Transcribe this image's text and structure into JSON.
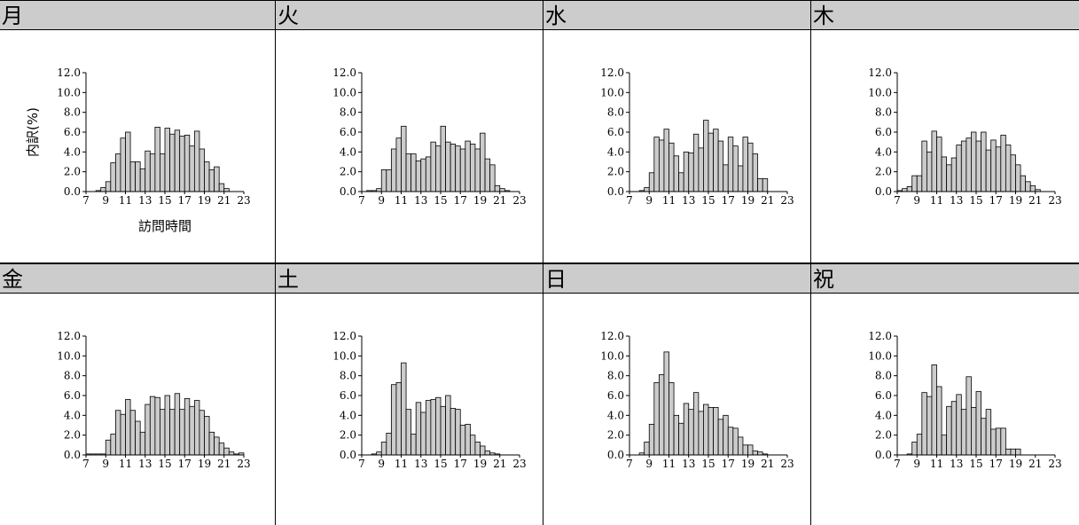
{
  "chart_data": [
    {
      "type": "bar",
      "title": "月",
      "ylabel": "内訳(%)",
      "xlabel": "訪問時間",
      "ylim": [
        0,
        12
      ],
      "yticks": [
        "0.0",
        "2.0",
        "4.0",
        "6.0",
        "8.0",
        "10.0",
        "12.0"
      ],
      "xticks": [
        "7",
        "9",
        "11",
        "13",
        "15",
        "17",
        "19",
        "21",
        "23"
      ],
      "x": [
        7,
        7.5,
        8,
        8.5,
        9,
        9.5,
        10,
        10.5,
        11,
        11.5,
        12,
        12.5,
        13,
        13.5,
        14,
        14.5,
        15,
        15.5,
        16,
        16.5,
        17,
        17.5,
        18,
        18.5,
        19,
        19.5,
        20,
        20.5,
        21,
        21.5,
        22,
        22.5
      ],
      "values": [
        0,
        0,
        0.1,
        0.4,
        1.0,
        2.9,
        3.8,
        5.4,
        6.0,
        3.0,
        3.0,
        2.3,
        4.1,
        3.8,
        6.5,
        3.8,
        6.4,
        5.8,
        6.2,
        5.6,
        5.7,
        4.6,
        6.1,
        4.3,
        3.0,
        2.2,
        2.5,
        0.8,
        0.3,
        0,
        0,
        0
      ]
    },
    {
      "type": "bar",
      "title": "火",
      "ylim": [
        0,
        12
      ],
      "yticks": [
        "0.0",
        "2.0",
        "4.0",
        "6.0",
        "8.0",
        "10.0",
        "12.0"
      ],
      "xticks": [
        "7",
        "9",
        "11",
        "13",
        "15",
        "17",
        "19",
        "21",
        "23"
      ],
      "x": [
        7,
        7.5,
        8,
        8.5,
        9,
        9.5,
        10,
        10.5,
        11,
        11.5,
        12,
        12.5,
        13,
        13.5,
        14,
        14.5,
        15,
        15.5,
        16,
        16.5,
        17,
        17.5,
        18,
        18.5,
        19,
        19.5,
        20,
        20.5,
        21,
        21.5,
        22,
        22.5
      ],
      "values": [
        0,
        0.1,
        0.1,
        0.3,
        2.2,
        2.2,
        4.3,
        5.4,
        6.6,
        3.8,
        3.8,
        3.1,
        3.3,
        3.5,
        5.0,
        4.6,
        6.6,
        5.0,
        4.8,
        4.6,
        4.3,
        5.1,
        4.8,
        4.3,
        5.9,
        3.3,
        2.7,
        0.6,
        0.3,
        0.1,
        0,
        0
      ]
    },
    {
      "type": "bar",
      "title": "水",
      "ylim": [
        0,
        12
      ],
      "yticks": [
        "0.0",
        "2.0",
        "4.0",
        "6.0",
        "8.0",
        "10.0",
        "12.0"
      ],
      "xticks": [
        "7",
        "9",
        "11",
        "13",
        "15",
        "17",
        "19",
        "21",
        "23"
      ],
      "x": [
        7,
        7.5,
        8,
        8.5,
        9,
        9.5,
        10,
        10.5,
        11,
        11.5,
        12,
        12.5,
        13,
        13.5,
        14,
        14.5,
        15,
        15.5,
        16,
        16.5,
        17,
        17.5,
        18,
        18.5,
        19,
        19.5,
        20,
        20.5,
        21,
        21.5,
        22,
        22.5
      ],
      "values": [
        0,
        0,
        0.1,
        0.4,
        1.9,
        5.5,
        5.2,
        6.3,
        4.9,
        3.6,
        1.9,
        4.0,
        3.9,
        5.8,
        4.4,
        7.2,
        5.9,
        6.3,
        5.1,
        2.7,
        5.5,
        4.6,
        2.6,
        5.5,
        4.9,
        3.8,
        1.3,
        1.3,
        0,
        0,
        0,
        0
      ]
    },
    {
      "type": "bar",
      "title": "木",
      "ylim": [
        0,
        12
      ],
      "yticks": [
        "0.0",
        "2.0",
        "4.0",
        "6.0",
        "8.0",
        "10.0",
        "12.0"
      ],
      "xticks": [
        "7",
        "9",
        "11",
        "13",
        "15",
        "17",
        "19",
        "21",
        "23"
      ],
      "x": [
        7,
        7.5,
        8,
        8.5,
        9,
        9.5,
        10,
        10.5,
        11,
        11.5,
        12,
        12.5,
        13,
        13.5,
        14,
        14.5,
        15,
        15.5,
        16,
        16.5,
        17,
        17.5,
        18,
        18.5,
        19,
        19.5,
        20,
        20.5,
        21,
        21.5,
        22,
        22.5
      ],
      "values": [
        0.1,
        0.3,
        0.5,
        1.6,
        1.6,
        5.1,
        4.0,
        6.1,
        5.5,
        3.5,
        2.7,
        3.4,
        4.7,
        5.1,
        5.4,
        6.0,
        5.1,
        6.0,
        4.2,
        5.2,
        4.5,
        5.7,
        4.7,
        3.7,
        2.7,
        1.6,
        1.0,
        0.6,
        0.2,
        0,
        0,
        0
      ]
    },
    {
      "type": "bar",
      "title": "金",
      "ylim": [
        0,
        12
      ],
      "yticks": [
        "0.0",
        "2.0",
        "4.0",
        "6.0",
        "8.0",
        "10.0",
        "12.0"
      ],
      "xticks": [
        "7",
        "9",
        "11",
        "13",
        "15",
        "17",
        "19",
        "21",
        "23"
      ],
      "x": [
        7,
        7.5,
        8,
        8.5,
        9,
        9.5,
        10,
        10.5,
        11,
        11.5,
        12,
        12.5,
        13,
        13.5,
        14,
        14.5,
        15,
        15.5,
        16,
        16.5,
        17,
        17.5,
        18,
        18.5,
        19,
        19.5,
        20,
        20.5,
        21,
        21.5,
        22,
        22.5
      ],
      "values": [
        0.1,
        0.1,
        0.1,
        0.1,
        1.5,
        2.1,
        4.5,
        4.1,
        5.6,
        4.5,
        3.4,
        2.3,
        5.1,
        5.9,
        5.8,
        4.6,
        6.0,
        4.6,
        6.2,
        4.6,
        5.7,
        4.9,
        5.5,
        4.5,
        3.9,
        2.3,
        1.8,
        1.2,
        0.7,
        0.3,
        0.1,
        0.2
      ]
    },
    {
      "type": "bar",
      "title": "土",
      "ylim": [
        0,
        12
      ],
      "yticks": [
        "0.0",
        "2.0",
        "4.0",
        "6.0",
        "8.0",
        "10.0",
        "12.0"
      ],
      "xticks": [
        "7",
        "9",
        "11",
        "13",
        "15",
        "17",
        "19",
        "21",
        "23"
      ],
      "x": [
        7,
        7.5,
        8,
        8.5,
        9,
        9.5,
        10,
        10.5,
        11,
        11.5,
        12,
        12.5,
        13,
        13.5,
        14,
        14.5,
        15,
        15.5,
        16,
        16.5,
        17,
        17.5,
        18,
        18.5,
        19,
        19.5,
        20,
        20.5,
        21,
        21.5,
        22,
        22.5
      ],
      "values": [
        0,
        0,
        0.1,
        0.3,
        1.3,
        2.2,
        7.1,
        7.3,
        9.3,
        4.6,
        2.1,
        5.3,
        4.3,
        5.5,
        5.6,
        5.8,
        4.9,
        6.0,
        4.7,
        4.6,
        3.0,
        3.1,
        2.0,
        1.3,
        0.9,
        0.4,
        0.2,
        0.1,
        0,
        0,
        0,
        0
      ]
    },
    {
      "type": "bar",
      "title": "日",
      "ylim": [
        0,
        12
      ],
      "yticks": [
        "0.0",
        "2.0",
        "4.0",
        "6.0",
        "8.0",
        "10.0",
        "12.0"
      ],
      "xticks": [
        "7",
        "9",
        "11",
        "13",
        "15",
        "17",
        "19",
        "21",
        "23"
      ],
      "x": [
        7,
        7.5,
        8,
        8.5,
        9,
        9.5,
        10,
        10.5,
        11,
        11.5,
        12,
        12.5,
        13,
        13.5,
        14,
        14.5,
        15,
        15.5,
        16,
        16.5,
        17,
        17.5,
        18,
        18.5,
        19,
        19.5,
        20,
        20.5,
        21,
        21.5,
        22,
        22.5
      ],
      "values": [
        0,
        0,
        0.2,
        1.3,
        3.1,
        7.3,
        8.1,
        10.4,
        7.3,
        4.0,
        3.2,
        5.2,
        4.6,
        6.3,
        4.4,
        5.1,
        4.8,
        4.8,
        3.6,
        4.0,
        2.8,
        2.7,
        1.8,
        1.0,
        1.0,
        0.4,
        0.3,
        0.1,
        0,
        0,
        0,
        0
      ]
    },
    {
      "type": "bar",
      "title": "祝",
      "ylim": [
        0,
        12
      ],
      "yticks": [
        "0.0",
        "2.0",
        "4.0",
        "6.0",
        "8.0",
        "10.0",
        "12.0"
      ],
      "xticks": [
        "7",
        "9",
        "11",
        "13",
        "15",
        "17",
        "19",
        "21",
        "23"
      ],
      "x": [
        7,
        7.5,
        8,
        8.5,
        9,
        9.5,
        10,
        10.5,
        11,
        11.5,
        12,
        12.5,
        13,
        13.5,
        14,
        14.5,
        15,
        15.5,
        16,
        16.5,
        17,
        17.5,
        18,
        18.5,
        19,
        19.5,
        20,
        20.5,
        21,
        21.5,
        22,
        22.5
      ],
      "values": [
        0,
        0,
        0.1,
        1.3,
        2.1,
        6.3,
        5.9,
        9.1,
        6.9,
        2.0,
        4.9,
        5.4,
        6.1,
        4.6,
        7.9,
        4.8,
        6.4,
        3.7,
        4.6,
        2.6,
        2.7,
        2.7,
        0.6,
        0.6,
        0.6,
        0,
        0,
        0,
        0,
        0,
        0,
        0
      ]
    }
  ]
}
